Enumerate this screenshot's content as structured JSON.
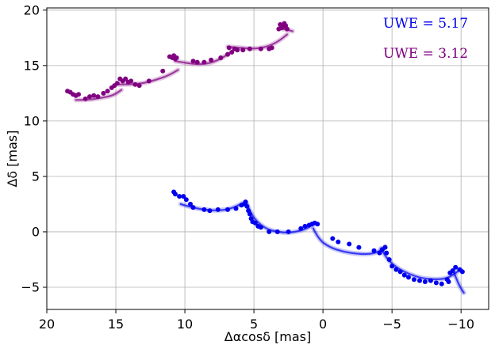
{
  "chart_data": {
    "type": "scatter",
    "xlabel": "Δαcosδ [mas]",
    "ylabel": "Δδ [mas]",
    "xlim": [
      20,
      -12
    ],
    "ylim": [
      -7,
      20.2
    ],
    "x_reversed": true,
    "grid": true,
    "x_ticks": [
      20,
      15,
      10,
      5,
      0,
      -5,
      -10
    ],
    "x_tick_labels": [
      "20",
      "15",
      "10",
      "5",
      "0",
      "−5",
      "−10"
    ],
    "y_ticks": [
      -5,
      0,
      5,
      10,
      15,
      20
    ],
    "y_tick_labels": [
      "−5",
      "0",
      "5",
      "10",
      "15",
      "20"
    ],
    "annotations": [
      {
        "text": "UWE = 5.17",
        "color": "#0000ee",
        "position": "top-right"
      },
      {
        "text": "UWE = 3.12",
        "color": "#800080",
        "position": "top-right"
      }
    ],
    "series": [
      {
        "color": "#800080",
        "points": [
          [
            18.5,
            12.7
          ],
          [
            18.3,
            12.6
          ],
          [
            18.1,
            12.4
          ],
          [
            17.9,
            12.3
          ],
          [
            17.7,
            12.4
          ],
          [
            17.2,
            12.0
          ],
          [
            16.9,
            12.2
          ],
          [
            16.6,
            12.3
          ],
          [
            16.3,
            12.2
          ],
          [
            15.9,
            12.5
          ],
          [
            15.6,
            12.7
          ],
          [
            15.3,
            13.0
          ],
          [
            15.1,
            13.2
          ],
          [
            14.9,
            13.4
          ],
          [
            14.7,
            13.8
          ],
          [
            14.5,
            13.6
          ],
          [
            14.3,
            13.8
          ],
          [
            14.1,
            13.5
          ],
          [
            13.9,
            13.6
          ],
          [
            13.6,
            13.3
          ],
          [
            13.3,
            13.2
          ],
          [
            12.6,
            13.6
          ],
          [
            11.6,
            14.5
          ],
          [
            11.1,
            15.8
          ],
          [
            10.9,
            15.7
          ],
          [
            10.7,
            15.6
          ],
          [
            10.8,
            15.9
          ],
          [
            10.6,
            15.7
          ],
          [
            9.4,
            15.4
          ],
          [
            9.1,
            15.3
          ],
          [
            8.6,
            15.3
          ],
          [
            8.1,
            15.5
          ],
          [
            7.4,
            15.7
          ],
          [
            6.9,
            16.0
          ],
          [
            6.8,
            16.6
          ],
          [
            6.6,
            16.2
          ],
          [
            6.4,
            16.5
          ],
          [
            6.2,
            16.4
          ],
          [
            5.8,
            16.4
          ],
          [
            5.3,
            16.5
          ],
          [
            4.5,
            16.5
          ],
          [
            3.9,
            16.5
          ],
          [
            3.7,
            16.6
          ],
          [
            3.2,
            18.3
          ],
          [
            3.1,
            18.7
          ],
          [
            3.0,
            18.4
          ],
          [
            2.9,
            18.5
          ],
          [
            2.8,
            18.8
          ],
          [
            2.7,
            18.6
          ],
          [
            2.6,
            18.3
          ]
        ],
        "arcs": [
          [
            [
              17.9,
              11.9
            ],
            [
              17.0,
              11.9
            ],
            [
              16.0,
              12.1
            ],
            [
              15.2,
              12.3
            ],
            [
              14.6,
              12.8
            ]
          ],
          [
            [
              14.8,
              13.3
            ],
            [
              14.0,
              13.3
            ],
            [
              13.0,
              13.4
            ],
            [
              12.1,
              13.7
            ],
            [
              11.2,
              14.1
            ],
            [
              10.5,
              14.6
            ]
          ],
          [
            [
              10.7,
              15.4
            ],
            [
              9.8,
              15.2
            ],
            [
              9.0,
              15.1
            ],
            [
              8.2,
              15.2
            ],
            [
              7.4,
              15.6
            ],
            [
              6.8,
              16.1
            ]
          ],
          [
            [
              6.9,
              16.7
            ],
            [
              6.0,
              16.6
            ],
            [
              5.0,
              16.5
            ],
            [
              4.0,
              16.7
            ],
            [
              3.2,
              17.2
            ],
            [
              2.6,
              17.8
            ]
          ],
          [
            [
              2.9,
              18.3
            ],
            [
              2.5,
              18.2
            ],
            [
              2.2,
              18.1
            ]
          ]
        ]
      },
      {
        "color": "#0000ee",
        "points": [
          [
            10.8,
            3.6
          ],
          [
            10.7,
            3.4
          ],
          [
            10.4,
            3.2
          ],
          [
            10.1,
            3.2
          ],
          [
            9.9,
            2.9
          ],
          [
            9.6,
            2.5
          ],
          [
            9.4,
            2.2
          ],
          [
            8.6,
            2.0
          ],
          [
            8.2,
            1.9
          ],
          [
            7.6,
            2.0
          ],
          [
            6.9,
            2.0
          ],
          [
            6.3,
            2.1
          ],
          [
            5.9,
            2.4
          ],
          [
            5.7,
            2.5
          ],
          [
            5.6,
            2.7
          ],
          [
            5.5,
            2.3
          ],
          [
            5.4,
            1.9
          ],
          [
            5.3,
            1.6
          ],
          [
            5.2,
            1.2
          ],
          [
            5.1,
            0.9
          ],
          [
            4.9,
            0.8
          ],
          [
            4.7,
            0.5
          ],
          [
            4.5,
            0.4
          ],
          [
            3.9,
            0.0
          ],
          [
            3.3,
            0.0
          ],
          [
            2.5,
            0.0
          ],
          [
            1.6,
            0.3
          ],
          [
            1.3,
            0.5
          ],
          [
            1.0,
            0.6
          ],
          [
            0.8,
            0.7
          ],
          [
            0.6,
            0.8
          ],
          [
            0.4,
            0.7
          ],
          [
            -0.7,
            -0.6
          ],
          [
            -1.1,
            -0.9
          ],
          [
            -1.9,
            -1.1
          ],
          [
            -2.6,
            -1.4
          ],
          [
            -3.7,
            -1.7
          ],
          [
            -4.1,
            -1.9
          ],
          [
            -4.3,
            -1.6
          ],
          [
            -4.5,
            -1.4
          ],
          [
            -4.6,
            -1.9
          ],
          [
            -4.8,
            -2.5
          ],
          [
            -5.0,
            -3.1
          ],
          [
            -5.3,
            -3.4
          ],
          [
            -5.6,
            -3.6
          ],
          [
            -5.9,
            -3.9
          ],
          [
            -6.2,
            -4.1
          ],
          [
            -6.6,
            -4.3
          ],
          [
            -7.0,
            -4.4
          ],
          [
            -7.4,
            -4.5
          ],
          [
            -7.8,
            -4.4
          ],
          [
            -8.2,
            -4.6
          ],
          [
            -8.6,
            -4.7
          ],
          [
            -9.0,
            -4.3
          ],
          [
            -9.2,
            -3.7
          ],
          [
            -9.4,
            -3.5
          ],
          [
            -9.6,
            -3.2
          ],
          [
            -9.9,
            -3.4
          ],
          [
            -10.1,
            -3.6
          ],
          [
            -9.1,
            -4.5
          ]
        ],
        "arcs": [
          [
            [
              10.3,
              2.5
            ],
            [
              9.5,
              2.2
            ],
            [
              8.6,
              2.0
            ],
            [
              7.6,
              1.9
            ],
            [
              6.6,
              2.1
            ],
            [
              5.8,
              2.6
            ]
          ],
          [
            [
              5.5,
              2.5
            ],
            [
              5.2,
              1.6
            ],
            [
              4.7,
              0.8
            ],
            [
              4.0,
              0.2
            ],
            [
              3.3,
              0.0
            ],
            [
              2.5,
              -0.1
            ],
            [
              1.6,
              0.1
            ],
            [
              1.0,
              0.4
            ],
            [
              0.6,
              0.8
            ]
          ],
          [
            [
              0.7,
              0.3
            ],
            [
              0.3,
              -0.7
            ],
            [
              -0.5,
              -1.4
            ],
            [
              -1.5,
              -1.8
            ],
            [
              -2.6,
              -2.0
            ],
            [
              -3.5,
              -2.0
            ],
            [
              -4.2,
              -1.7
            ],
            [
              -4.5,
              -1.3
            ]
          ],
          [
            [
              -4.2,
              -1.5
            ],
            [
              -4.6,
              -2.4
            ],
            [
              -5.3,
              -3.2
            ],
            [
              -6.2,
              -3.8
            ],
            [
              -7.2,
              -4.2
            ],
            [
              -8.2,
              -4.3
            ],
            [
              -9.0,
              -4.2
            ],
            [
              -9.6,
              -3.7
            ],
            [
              -10.0,
              -3.4
            ]
          ],
          [
            [
              -9.5,
              -3.7
            ],
            [
              -9.8,
              -4.7
            ],
            [
              -10.2,
              -5.5
            ]
          ]
        ]
      }
    ]
  }
}
